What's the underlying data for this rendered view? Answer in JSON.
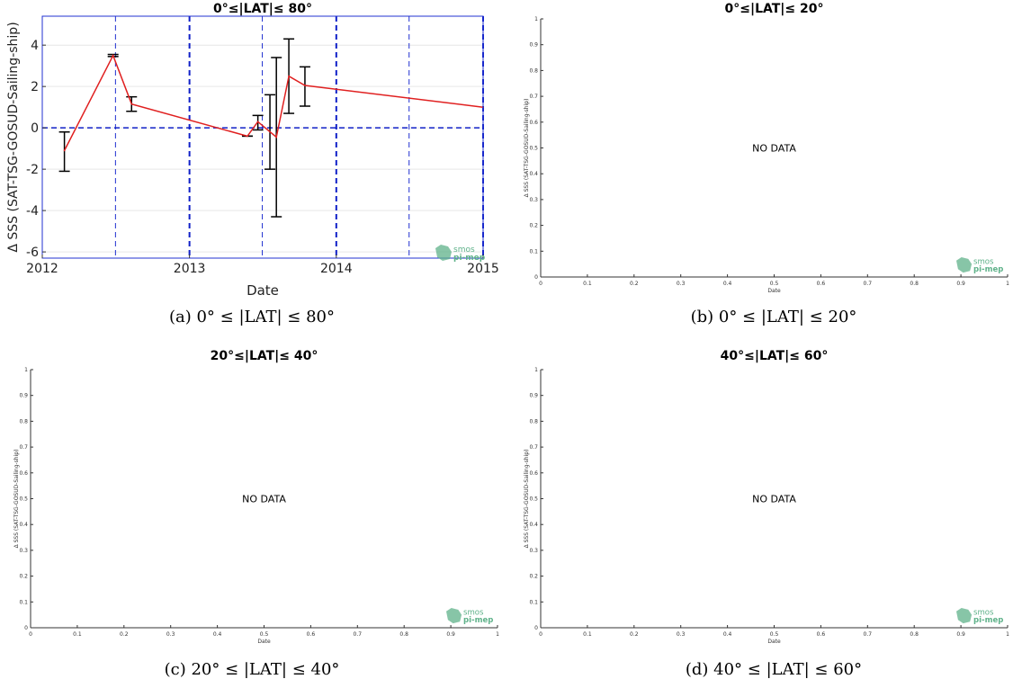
{
  "chart_data": [
    {
      "type": "line",
      "title": "0°≤|LAT|≤ 80°",
      "xlabel": "Date",
      "ylabel": "Δ SSS (SAT-TSG-GOSUD-Sailing-ship)",
      "x_ticks": [
        "2012",
        "2013",
        "2014",
        "2015"
      ],
      "y_ticks": [
        "-6",
        "-4",
        "-2",
        "0",
        "2",
        "4"
      ],
      "xlim": [
        "2012-01-01",
        "2015-01-01"
      ],
      "ylim": [
        -6.3,
        5.4
      ],
      "grid": true,
      "reference_line_y": 0,
      "year_lines": [
        "2013-01-01",
        "2014-01-01",
        "2015-01-01"
      ],
      "half_year_lines": [
        "2012-07-01",
        "2013-07-01",
        "2014-07-01"
      ],
      "series": [
        {
          "color": "#e02020",
          "x": [
            "2012-02-25",
            "2012-06-25",
            "2012-08-10",
            "2013-05-25",
            "2013-06-20",
            "2013-08-05",
            "2013-09-05",
            "2013-10-15",
            "2015-01-01"
          ],
          "y": [
            -1.1,
            3.5,
            1.15,
            -0.4,
            0.3,
            -0.45,
            2.5,
            2.05,
            1.0
          ]
        }
      ],
      "error_bars": [
        {
          "x": "2012-02-25",
          "low": -2.1,
          "high": -0.2
        },
        {
          "x": "2012-06-25",
          "low": 3.45,
          "high": 3.55
        },
        {
          "x": "2012-08-10",
          "low": 0.8,
          "high": 1.5
        },
        {
          "x": "2013-05-25",
          "low": -0.4,
          "high": -0.4
        },
        {
          "x": "2013-06-20",
          "low": -0.1,
          "high": 0.6
        },
        {
          "x": "2013-07-20",
          "low": -2.0,
          "high": 1.6
        },
        {
          "x": "2013-08-05",
          "low": -4.3,
          "high": 3.4
        },
        {
          "x": "2013-09-05",
          "low": 0.7,
          "high": 4.3
        },
        {
          "x": "2013-10-15",
          "low": 1.05,
          "high": 2.95
        }
      ],
      "logo": {
        "line1": "smos",
        "line2": "pi-mep",
        "color": "#5fb28a"
      }
    },
    {
      "type": "line",
      "title": "0°≤|LAT|≤ 20°",
      "xlabel": "Date",
      "ylabel": "Δ SSS (SAT-TSG-GOSUD-Sailing-ship)",
      "x_ticks": [
        "0",
        "0.1",
        "0.2",
        "0.3",
        "0.4",
        "0.5",
        "0.6",
        "0.7",
        "0.8",
        "0.9",
        "1"
      ],
      "y_ticks": [
        "0",
        "0.1",
        "0.2",
        "0.3",
        "0.4",
        "0.5",
        "0.6",
        "0.7",
        "0.8",
        "0.9",
        "1"
      ],
      "xlim": [
        0,
        1
      ],
      "ylim": [
        0,
        1
      ],
      "message": "NO DATA",
      "logo": {
        "line1": "smos",
        "line2": "pi-mep",
        "color": "#5fb28a"
      }
    },
    {
      "type": "line",
      "title": "20°≤|LAT|≤ 40°",
      "xlabel": "Date",
      "ylabel": "Δ SSS (SAT-TSG-GOSUD-Sailing-ship)",
      "x_ticks": [
        "0",
        "0.1",
        "0.2",
        "0.3",
        "0.4",
        "0.5",
        "0.6",
        "0.7",
        "0.8",
        "0.9",
        "1"
      ],
      "y_ticks": [
        "0",
        "0.1",
        "0.2",
        "0.3",
        "0.4",
        "0.5",
        "0.6",
        "0.7",
        "0.8",
        "0.9",
        "1"
      ],
      "xlim": [
        0,
        1
      ],
      "ylim": [
        0,
        1
      ],
      "message": "NO DATA",
      "logo": {
        "line1": "smos",
        "line2": "pi-mep",
        "color": "#5fb28a"
      }
    },
    {
      "type": "line",
      "title": "40°≤|LAT|≤ 60°",
      "xlabel": "Date",
      "ylabel": "Δ SSS (SAT-TSG-GOSUD-Sailing-ship)",
      "x_ticks": [
        "0",
        "0.1",
        "0.2",
        "0.3",
        "0.4",
        "0.5",
        "0.6",
        "0.7",
        "0.8",
        "0.9",
        "1"
      ],
      "y_ticks": [
        "0",
        "0.1",
        "0.2",
        "0.3",
        "0.4",
        "0.5",
        "0.6",
        "0.7",
        "0.8",
        "0.9",
        "1"
      ],
      "xlim": [
        0,
        1
      ],
      "ylim": [
        0,
        1
      ],
      "message": "NO DATA",
      "logo": {
        "line1": "smos",
        "line2": "pi-mep",
        "color": "#5fb28a"
      }
    }
  ],
  "captions": [
    "(a) 0° ≤ |LAT| ≤ 80°",
    "(b) 0° ≤ |LAT| ≤ 20°",
    "(c) 20° ≤ |LAT| ≤ 40°",
    "(d) 40° ≤ |LAT| ≤ 60°"
  ]
}
